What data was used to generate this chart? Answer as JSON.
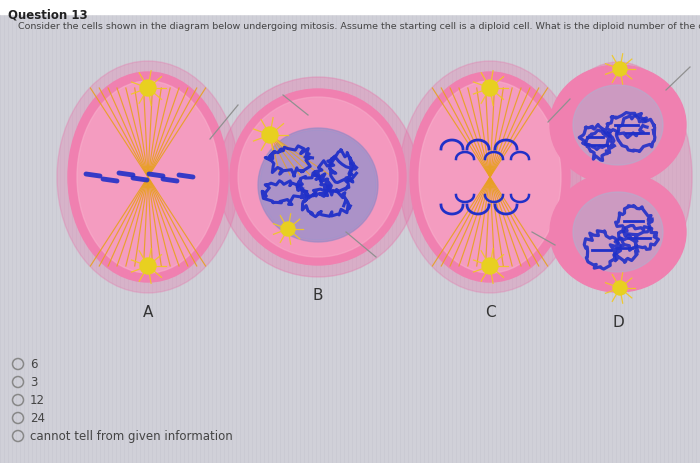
{
  "title": "Question 13",
  "subtitle": "Consider the cells shown in the diagram below undergoing mitosis. Assume the starting cell is a diploid cell. What is the diploid number of the cell?",
  "cell_labels": [
    "A",
    "B",
    "C",
    "D"
  ],
  "answer_choices": [
    "6",
    "3",
    "12",
    "24",
    "cannot tell from given information"
  ],
  "bg_color": "#d0d0d8",
  "bg_stripe": "#c8c8d0",
  "cell_pink": "#f080b0",
  "cell_pink_light": "#f8b0cc",
  "cell_pink_mid": "#f090b8",
  "spindle_color": "#e8a020",
  "chromosome_color": "#2030c8",
  "centrosome_color": "#e8d020",
  "nucleus_blue": "#9090c8",
  "pointer_color": "#909090",
  "text_dark": "#222222",
  "text_mid": "#444444",
  "radio_color": "#888888"
}
